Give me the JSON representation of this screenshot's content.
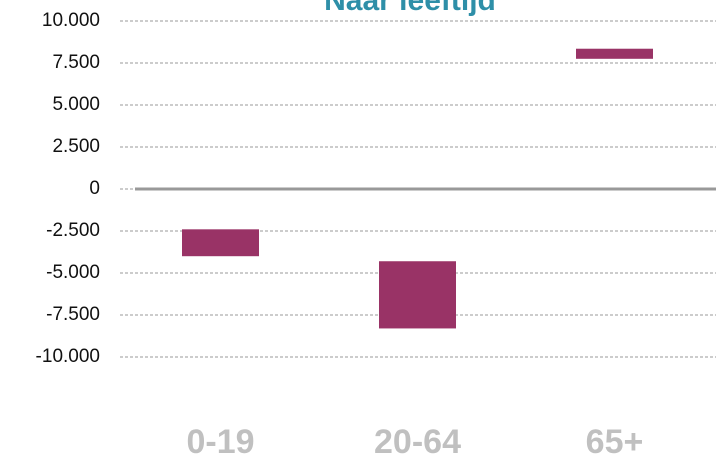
{
  "chart_data": {
    "type": "floating_bar",
    "title": "Naar leeftijd",
    "categories": [
      "0-19",
      "20-64",
      "65+"
    ],
    "low": [
      -4000,
      -8300,
      7750
    ],
    "high": [
      -2400,
      -4300,
      8350
    ],
    "color": "#993366",
    "ylim": [
      -10000,
      10000
    ],
    "yticks": [
      {
        "value": 10000,
        "label": "10.000"
      },
      {
        "value": 7500,
        "label": "7.500"
      },
      {
        "value": 5000,
        "label": "5.000"
      },
      {
        "value": 2500,
        "label": "2.500"
      },
      0,
      {
        "value": -2500,
        "label": "-2.500"
      },
      {
        "value": -5000,
        "label": "-5.000"
      },
      {
        "value": -7500,
        "label": "-7.500"
      },
      {
        "value": -10000,
        "label": "-10.000"
      }
    ],
    "grid": true
  }
}
